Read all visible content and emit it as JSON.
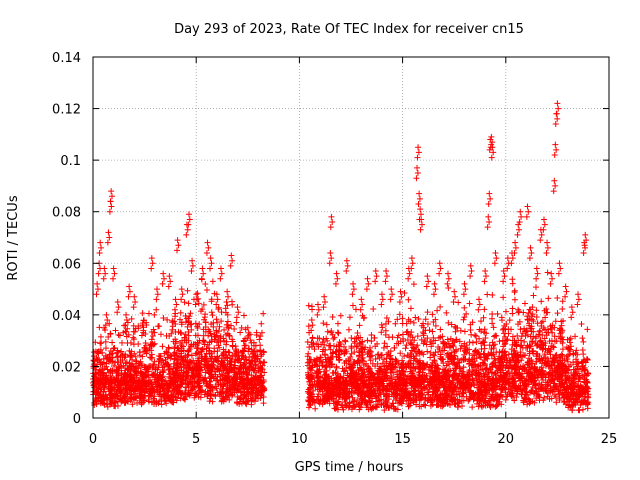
{
  "chart_data": {
    "type": "scatter",
    "title": "Day 293 of 2023, Rate Of TEC Index for receiver cn15",
    "xlabel": "GPS time / hours",
    "ylabel": "ROTI / TECUs",
    "xlim": [
      0,
      25
    ],
    "ylim": [
      0,
      0.14
    ],
    "xticks": [
      0,
      5,
      10,
      15,
      20,
      25
    ],
    "xtick_labels": [
      "0",
      "5",
      "10",
      "15",
      "20",
      "25"
    ],
    "yticks": [
      0,
      0.02,
      0.04,
      0.06,
      0.08,
      0.1,
      0.12,
      0.14
    ],
    "ytick_labels": [
      "0",
      "0.02",
      "0.04",
      "0.06",
      "0.08",
      "0.1",
      "0.12",
      "0.14"
    ],
    "grid": true,
    "marker": "+",
    "marker_color": "#ff0000",
    "series": [
      {
        "name": "ROTI",
        "description": "dense cloud of ROTI samples; data gap between ~8.3 h and ~10.4 h",
        "points": [
          [
            0.05,
            0.024
          ],
          [
            0.2,
            0.052
          ],
          [
            0.3,
            0.06
          ],
          [
            0.35,
            0.068
          ],
          [
            0.55,
            0.058
          ],
          [
            0.65,
            0.04
          ],
          [
            0.75,
            0.072
          ],
          [
            0.85,
            0.084
          ],
          [
            0.88,
            0.088
          ],
          [
            1.0,
            0.058
          ],
          [
            1.2,
            0.045
          ],
          [
            1.6,
            0.04
          ],
          [
            1.75,
            0.051
          ],
          [
            2.0,
            0.047
          ],
          [
            2.4,
            0.036
          ],
          [
            2.85,
            0.062
          ],
          [
            3.1,
            0.05
          ],
          [
            3.4,
            0.056
          ],
          [
            3.7,
            0.055
          ],
          [
            4.0,
            0.046
          ],
          [
            4.1,
            0.069
          ],
          [
            4.3,
            0.05
          ],
          [
            4.55,
            0.075
          ],
          [
            4.65,
            0.079
          ],
          [
            4.8,
            0.061
          ],
          [
            5.0,
            0.048
          ],
          [
            5.3,
            0.058
          ],
          [
            5.55,
            0.068
          ],
          [
            5.7,
            0.062
          ],
          [
            6.0,
            0.048
          ],
          [
            6.2,
            0.058
          ],
          [
            6.5,
            0.049
          ],
          [
            6.7,
            0.063
          ],
          [
            7.0,
            0.043
          ],
          [
            7.3,
            0.03
          ],
          [
            7.5,
            0.035
          ],
          [
            7.8,
            0.028
          ],
          [
            8.1,
            0.026
          ],
          [
            10.6,
            0.038
          ],
          [
            10.9,
            0.044
          ],
          [
            11.2,
            0.047
          ],
          [
            11.5,
            0.064
          ],
          [
            11.55,
            0.078
          ],
          [
            11.8,
            0.056
          ],
          [
            12.3,
            0.061
          ],
          [
            12.6,
            0.052
          ],
          [
            13.0,
            0.046
          ],
          [
            13.3,
            0.054
          ],
          [
            13.7,
            0.057
          ],
          [
            14.0,
            0.048
          ],
          [
            14.2,
            0.057
          ],
          [
            14.45,
            0.05
          ],
          [
            14.9,
            0.049
          ],
          [
            15.3,
            0.058
          ],
          [
            15.45,
            0.062
          ],
          [
            15.7,
            0.097
          ],
          [
            15.75,
            0.105
          ],
          [
            15.8,
            0.087
          ],
          [
            15.85,
            0.081
          ],
          [
            15.9,
            0.077
          ],
          [
            16.2,
            0.055
          ],
          [
            16.55,
            0.052
          ],
          [
            16.8,
            0.06
          ],
          [
            17.2,
            0.056
          ],
          [
            17.5,
            0.049
          ],
          [
            18.0,
            0.052
          ],
          [
            18.3,
            0.059
          ],
          [
            18.7,
            0.046
          ],
          [
            19.0,
            0.057
          ],
          [
            19.15,
            0.078
          ],
          [
            19.2,
            0.087
          ],
          [
            19.25,
            0.108
          ],
          [
            19.3,
            0.109
          ],
          [
            19.35,
            0.105
          ],
          [
            19.5,
            0.064
          ],
          [
            19.9,
            0.057
          ],
          [
            20.1,
            0.062
          ],
          [
            20.3,
            0.064
          ],
          [
            20.45,
            0.068
          ],
          [
            20.6,
            0.075
          ],
          [
            20.7,
            0.08
          ],
          [
            21.05,
            0.082
          ],
          [
            21.2,
            0.066
          ],
          [
            21.5,
            0.058
          ],
          [
            21.7,
            0.073
          ],
          [
            21.85,
            0.077
          ],
          [
            22.0,
            0.068
          ],
          [
            22.2,
            0.056
          ],
          [
            22.35,
            0.092
          ],
          [
            22.4,
            0.106
          ],
          [
            22.45,
            0.118
          ],
          [
            22.5,
            0.122
          ],
          [
            22.6,
            0.06
          ],
          [
            22.9,
            0.051
          ],
          [
            23.2,
            0.043
          ],
          [
            23.5,
            0.048
          ],
          [
            23.8,
            0.068
          ],
          [
            23.85,
            0.071
          ]
        ],
        "bands": [
          {
            "x": [
              0,
              1.5
            ],
            "base": [
              0.004,
              0.015
            ],
            "spread": [
              0.01,
              0.03
            ]
          },
          {
            "x": [
              1.5,
              4.2
            ],
            "base": [
              0.005,
              0.014
            ],
            "spread": [
              0.01,
              0.035
            ]
          },
          {
            "x": [
              4.2,
              6.8
            ],
            "base": [
              0.006,
              0.02
            ],
            "spread": [
              0.015,
              0.042
            ]
          },
          {
            "x": [
              6.8,
              8.3
            ],
            "base": [
              0.005,
              0.015
            ],
            "spread": [
              0.01,
              0.03
            ]
          },
          {
            "x": [
              10.4,
              14.8
            ],
            "base": [
              0.003,
              0.014
            ],
            "spread": [
              0.01,
              0.035
            ]
          },
          {
            "x": [
              14.8,
              19.8
            ],
            "base": [
              0.004,
              0.015
            ],
            "spread": [
              0.01,
              0.038
            ]
          },
          {
            "x": [
              19.8,
              22.8
            ],
            "base": [
              0.005,
              0.02
            ],
            "spread": [
              0.012,
              0.04
            ]
          },
          {
            "x": [
              22.8,
              24
            ],
            "base": [
              0.003,
              0.012
            ],
            "spread": [
              0.01,
              0.03
            ]
          }
        ]
      }
    ]
  }
}
